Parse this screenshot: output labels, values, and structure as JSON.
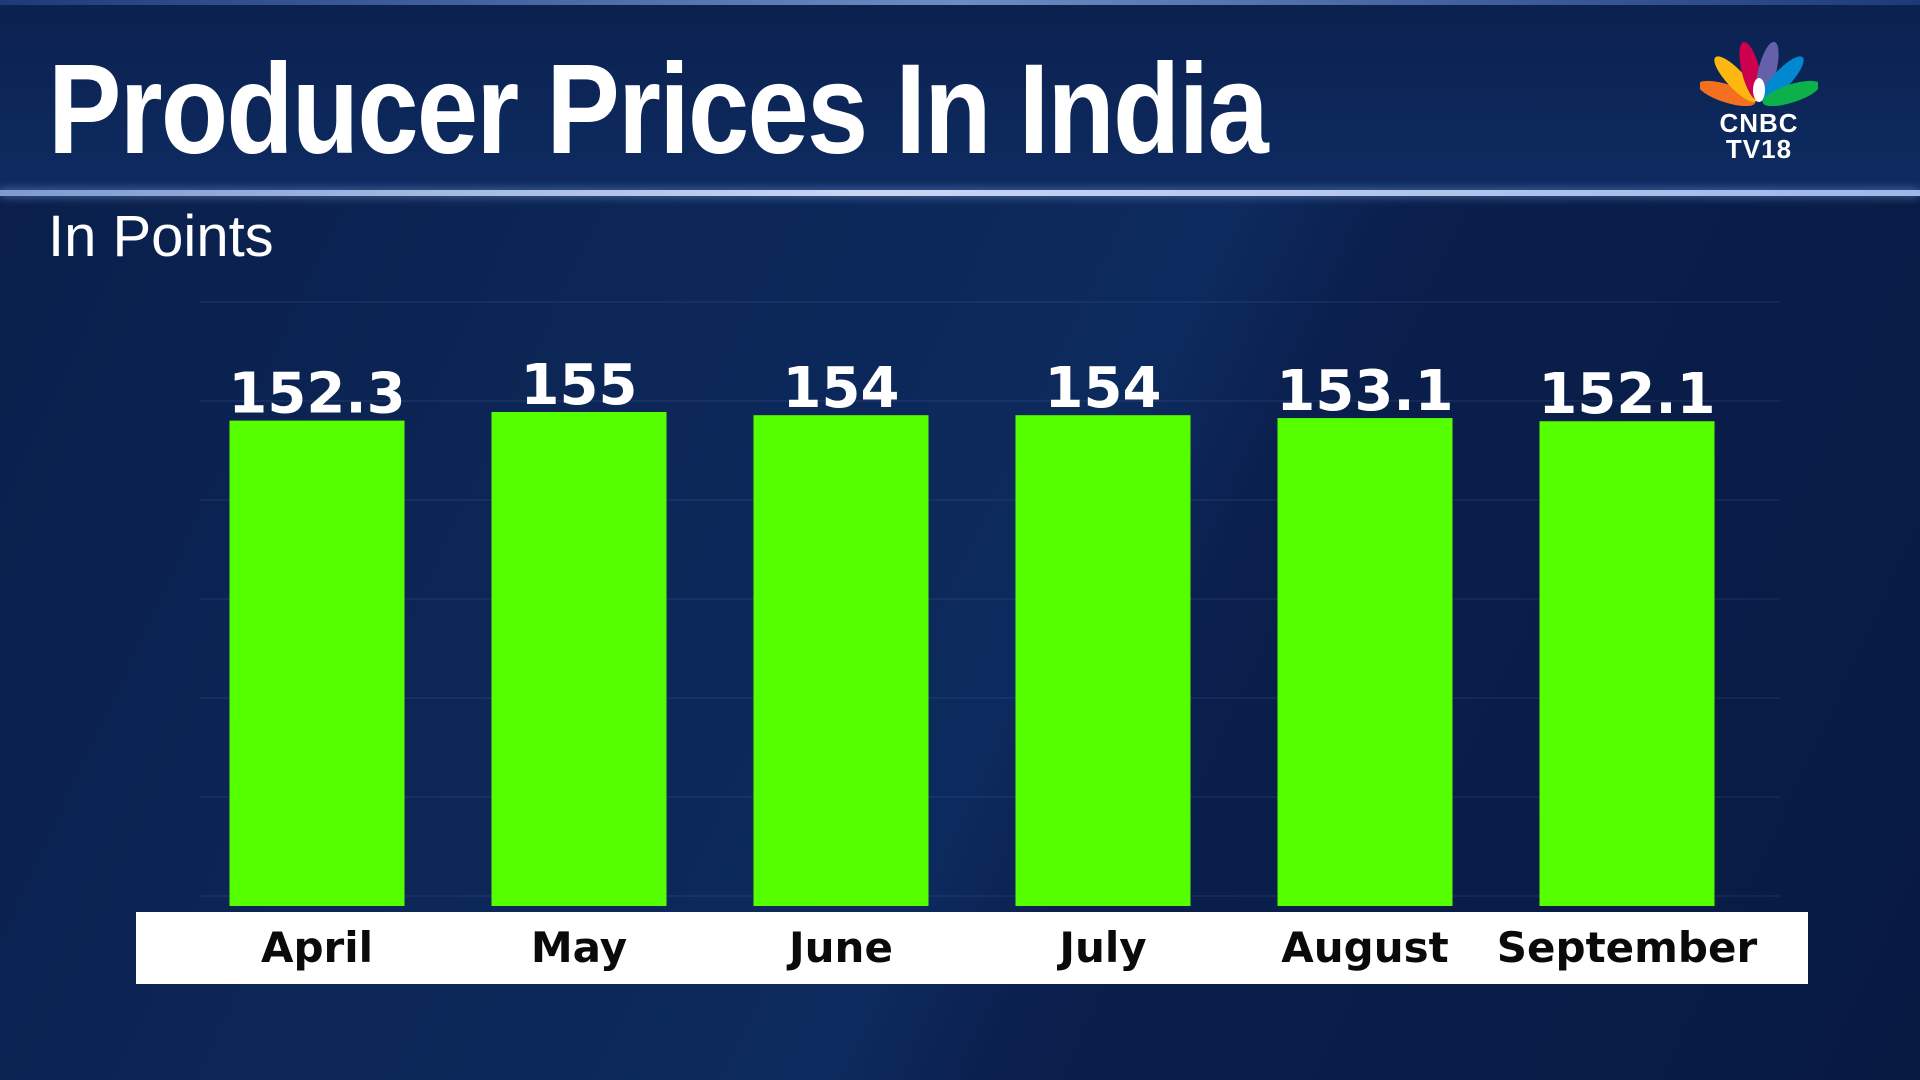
{
  "header": {
    "title": "Producer Prices In India",
    "subtitle": "In Points"
  },
  "logo": {
    "line1": "CNBC",
    "line2": "TV18",
    "icon": "nbc-peacock-icon"
  },
  "colors": {
    "bar": "#55ff00",
    "background": "#0c2758",
    "axis_band": "#ffffff",
    "label_text": "#ffffff",
    "category_text": "#0a0a0a"
  },
  "chart_data": {
    "type": "bar",
    "title": "Producer Prices In India",
    "subtitle": "In Points",
    "categories": [
      "April",
      "May",
      "June",
      "July",
      "August",
      "September"
    ],
    "values": [
      152.3,
      155,
      154,
      154,
      153.1,
      152.1
    ],
    "value_labels": [
      "152.3",
      "155",
      "154",
      "154",
      "153.1",
      "152.1"
    ],
    "xlabel": "",
    "ylabel": "",
    "grid": true,
    "legend": "none"
  }
}
